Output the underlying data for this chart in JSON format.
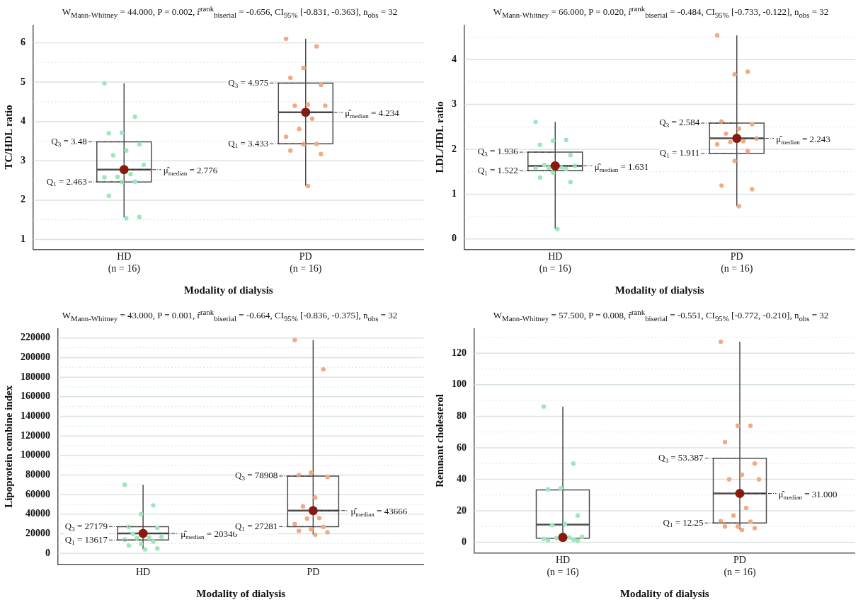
{
  "chart_data": [
    {
      "type": "box",
      "title": "W$_{Mann-Whitney}$ = 44.000, P = 0.002, r̂$^{rank}$$_{biserial}$ = -0.656, CI$_{95%}$ [-0.831, -0.363], n$_{obs}$ = 32",
      "xlabel": "Modality of dialysis",
      "ylabel": "TC/HDL ratio",
      "categories": [
        "HD\n(n = 16)",
        "PD\n(n = 16)"
      ],
      "ylim": [
        0.75,
        6.45
      ],
      "yticks": [
        1,
        {
          "value": 1.5,
          "label": null
        },
        2,
        {
          "value": 2.5,
          "label": null
        },
        3,
        {
          "value": 3.5,
          "label": null
        },
        4,
        {
          "value": 4.5,
          "label": null
        },
        5,
        {
          "value": 5.5,
          "label": null
        },
        6
      ],
      "grid": "y",
      "legend": false,
      "marker": "circle",
      "series": [
        {
          "type": "box",
          "color": "#4d4d4d",
          "boxes": [
            {
              "low": 1.56,
              "q1": 2.463,
              "median": 2.776,
              "q3": 3.48,
              "high": 4.97
            },
            {
              "low": 2.36,
              "q1": 3.433,
              "median": 4.234,
              "q3": 4.975,
              "high": 6.1
            }
          ]
        },
        {
          "type": "scatter",
          "color": "#9fe6ba",
          "x": [
            "HD\n(n = 16)",
            "HD\n(n = 16)",
            "HD\n(n = 16)",
            "HD\n(n = 16)",
            "HD\n(n = 16)",
            "HD\n(n = 16)",
            "HD\n(n = 16)",
            "HD\n(n = 16)",
            "HD\n(n = 16)",
            "HD\n(n = 16)",
            "HD\n(n = 16)",
            "HD\n(n = 16)",
            "HD\n(n = 16)",
            "HD\n(n = 16)",
            "HD\n(n = 16)",
            "HD\n(n = 16)"
          ],
          "values": [
            4.97,
            4.12,
            3.71,
            3.7,
            3.42,
            3.26,
            3.14,
            2.9,
            2.66,
            2.59,
            2.58,
            2.47,
            2.46,
            2.11,
            1.57,
            1.54
          ]
        },
        {
          "type": "scatter",
          "color": "#f0ab84",
          "x": [
            "PD\n(n = 16)",
            "PD\n(n = 16)",
            "PD\n(n = 16)",
            "PD\n(n = 16)",
            "PD\n(n = 16)",
            "PD\n(n = 16)",
            "PD\n(n = 16)",
            "PD\n(n = 16)",
            "PD\n(n = 16)",
            "PD\n(n = 16)",
            "PD\n(n = 16)",
            "PD\n(n = 16)",
            "PD\n(n = 16)",
            "PD\n(n = 16)",
            "PD\n(n = 16)",
            "PD\n(n = 16)"
          ],
          "values": [
            6.1,
            5.91,
            5.36,
            5.11,
            4.93,
            4.43,
            4.4,
            4.4,
            4.07,
            3.81,
            3.61,
            3.43,
            3.42,
            3.26,
            3.17,
            2.36
          ]
        },
        {
          "type": "scatter",
          "color": "#8b1a0e",
          "x": [
            "HD\n(n = 16)",
            "PD\n(n = 16)"
          ],
          "values": [
            2.776,
            4.234
          ]
        }
      ],
      "annotations": [
        {
          "text": "Q$_{3}$ = 3.48",
          "x": "HD\n(n = 16)",
          "y": 3.48
        },
        {
          "text": "Q$_{1}$ = 2.463",
          "x": "HD\n(n = 16)",
          "y": 2.463
        },
        {
          "text": "μ̂$_{median}$ = 2.776",
          "x": "HD\n(n = 16)",
          "y": 2.776
        },
        {
          "text": "Q$_{3}$ = 4.975",
          "x": "PD\n(n = 16)",
          "y": 4.975
        },
        {
          "text": "Q$_{1}$ = 3.433",
          "x": "PD\n(n = 16)",
          "y": 3.433
        },
        {
          "text": "μ̂$_{median}$ = 4.234",
          "x": "PD\n(n = 16)",
          "y": 4.234
        }
      ]
    },
    {
      "type": "box",
      "title": "W$_{Mann-Whitney}$ = 66.000, P = 0.020, r̂$^{rank}$$_{biserial}$ = -0.484, CI$_{95%}$ [-0.733, -0.122], n$_{obs}$ = 32",
      "xlabel": "Modality of dialysis",
      "ylabel": "LDL/HDL ratio",
      "categories": [
        "HD\n(n = 16)",
        "PD\n(n = 16)"
      ],
      "ylim": [
        -0.23,
        4.77
      ],
      "yticks": [
        0,
        {
          "value": 0.5,
          "label": null
        },
        1,
        {
          "value": 1.5,
          "label": null
        },
        2,
        {
          "value": 2.5,
          "label": null
        },
        3,
        {
          "value": 3.5,
          "label": null
        },
        4,
        {
          "value": 4.5,
          "label": null
        }
      ],
      "grid": "y",
      "legend": false,
      "marker": "circle",
      "series": [
        {
          "type": "box",
          "color": "#4d4d4d",
          "boxes": [
            {
              "low": 0.22,
              "q1": 1.522,
              "median": 1.631,
              "q3": 1.936,
              "high": 2.61
            },
            {
              "low": 0.73,
              "q1": 1.911,
              "median": 2.243,
              "q3": 2.584,
              "high": 4.54
            }
          ]
        },
        {
          "type": "scatter",
          "color": "#9fe6ba",
          "x": [
            "HD\n(n = 16)",
            "HD\n(n = 16)",
            "HD\n(n = 16)",
            "HD\n(n = 16)",
            "HD\n(n = 16)",
            "HD\n(n = 16)",
            "HD\n(n = 16)",
            "HD\n(n = 16)",
            "HD\n(n = 16)",
            "HD\n(n = 16)",
            "HD\n(n = 16)",
            "HD\n(n = 16)",
            "HD\n(n = 16)",
            "HD\n(n = 16)",
            "HD\n(n = 16)",
            "HD\n(n = 16)"
          ],
          "values": [
            2.61,
            2.21,
            2.19,
            2.1,
            1.87,
            null,
            1.65,
            1.63,
            1.6,
            1.59,
            1.57,
            1.56,
            1.48,
            1.37,
            1.27,
            0.22
          ]
        },
        {
          "type": "scatter",
          "color": "#f0ab84",
          "x": [
            "PD\n(n = 16)",
            "PD\n(n = 16)",
            "PD\n(n = 16)",
            "PD\n(n = 16)",
            "PD\n(n = 16)",
            "PD\n(n = 16)",
            "PD\n(n = 16)",
            "PD\n(n = 16)",
            "PD\n(n = 16)",
            "PD\n(n = 16)",
            "PD\n(n = 16)",
            "PD\n(n = 16)",
            "PD\n(n = 16)",
            "PD\n(n = 16)",
            "PD\n(n = 16)",
            "PD\n(n = 16)"
          ],
          "values": [
            4.54,
            3.73,
            3.67,
            2.62,
            2.56,
            2.46,
            2.35,
            2.24,
            2.18,
            2.16,
            2.11,
            1.96,
            1.74,
            1.19,
            1.11,
            0.73
          ]
        },
        {
          "type": "scatter",
          "color": "#8b1a0e",
          "x": [
            "HD\n(n = 16)",
            "PD\n(n = 16)"
          ],
          "values": [
            1.631,
            2.243
          ]
        }
      ],
      "annotations": [
        {
          "text": "Q$_{3}$ = 1.936",
          "x": "HD\n(n = 16)",
          "y": 1.936
        },
        {
          "text": "Q$_{1}$ = 1.522",
          "x": "HD\n(n = 16)",
          "y": 1.522
        },
        {
          "text": "μ̂$_{median}$ = 1.631",
          "x": "HD\n(n = 16)",
          "y": 1.631
        },
        {
          "text": "Q$_{3}$ = 2.584",
          "x": "PD\n(n = 16)",
          "y": 2.584
        },
        {
          "text": "Q$_{1}$ = 1.911",
          "x": "PD\n(n = 16)",
          "y": 1.911
        },
        {
          "text": "μ̂$_{median}$ = 2.243",
          "x": "PD\n(n = 16)",
          "y": 2.243
        }
      ]
    },
    {
      "type": "box",
      "title": "W$_{Mann-Whitney}$ = 43.000, P = 0.001, r̂$^{rank}$$_{biserial}$ = -0.664, CI$_{95%}$ [-0.836, -0.375], n$_{obs}$ = 32",
      "xlabel": "Modality of dialysis",
      "ylabel": "Lipoprotein combine index",
      "categories": [
        "HD",
        "PD"
      ],
      "ylim": [
        -11600,
        229700
      ],
      "yticks": [
        0,
        {
          "value": 10000,
          "label": null
        },
        20000,
        {
          "value": 30000,
          "label": null
        },
        40000,
        {
          "value": 50000,
          "label": null
        },
        60000,
        {
          "value": 70000,
          "label": null
        },
        80000,
        {
          "value": 90000,
          "label": null
        },
        100000,
        {
          "value": 110000,
          "label": null
        },
        120000,
        {
          "value": 130000,
          "label": null
        },
        140000,
        {
          "value": 150000,
          "label": null
        },
        160000,
        {
          "value": 170000,
          "label": null
        },
        180000,
        {
          "value": 190000,
          "label": null
        },
        200000,
        {
          "value": 210000,
          "label": null
        },
        220000
      ],
      "grid": "y",
      "legend": false,
      "marker": "circle",
      "series": [
        {
          "type": "box",
          "color": "#4d4d4d",
          "boxes": [
            {
              "low": 4000,
              "q1": 13617,
              "median": 20346,
              "q3": 27179,
              "high": 70000
            },
            {
              "low": 19000,
              "q1": 27281,
              "median": 43666,
              "q3": 78908,
              "high": 218000
            }
          ]
        },
        {
          "type": "scatter",
          "color": "#9fe6ba",
          "x": [
            "HD",
            "HD",
            "HD",
            "HD",
            "HD",
            "HD",
            "HD",
            "HD",
            "HD",
            "HD",
            "HD",
            "HD",
            "HD",
            "HD",
            "HD",
            "HD"
          ],
          "values": [
            70000,
            49000,
            40000,
            27000,
            26000,
            null,
            20000,
            17000,
            16000,
            15500,
            14000,
            12000,
            9500,
            8000,
            5000,
            4000
          ]
        },
        {
          "type": "scatter",
          "color": "#f0ab84",
          "x": [
            "PD",
            "PD",
            "PD",
            "PD",
            "PD",
            "PD",
            "PD",
            "PD",
            "PD",
            "PD",
            "PD",
            "PD",
            "PD",
            "PD",
            "PD",
            "PD"
          ],
          "values": [
            218000,
            188000,
            82500,
            80000,
            78000,
            57000,
            48000,
            null,
            36000,
            35500,
            30000,
            27000,
            24500,
            23000,
            21500,
            19000
          ]
        },
        {
          "type": "scatter",
          "color": "#8b1a0e",
          "x": [
            "HD",
            "PD"
          ],
          "values": [
            20346,
            43666
          ]
        }
      ],
      "annotations": [
        {
          "text": "Q$_{3}$ = 27179",
          "x": "HD",
          "y": 27179
        },
        {
          "text": "Q$_{1}$ = 13617",
          "x": "HD",
          "y": 13617
        },
        {
          "text": "μ̂$_{median}$ = 20346",
          "x": "HD",
          "y": 20346
        },
        {
          "text": "Q$_{3}$ = 78908",
          "x": "PD",
          "y": 78908
        },
        {
          "text": "Q$_{1}$ = 27281",
          "x": "PD",
          "y": 27281
        },
        {
          "text": "μ̂$_{median}$ = 43666",
          "x": "PD",
          "y": 43666
        }
      ]
    },
    {
      "type": "box",
      "title": "W$_{Mann-Whitney}$ = 57.500, P = 0.008, r̂$^{rank}$$_{biserial}$ = -0.551, CI$_{95%}$ [-0.772, -0.210], n$_{obs}$ = 32",
      "xlabel": "Modality of dialysis",
      "ylabel": "Remnant cholesterol",
      "categories": [
        "HD\n(n = 16)",
        "PD\n(n = 16)"
      ],
      "ylim": [
        -6.7,
        135.7
      ],
      "yticks": [
        0,
        {
          "value": 10,
          "label": null
        },
        20,
        {
          "value": 30,
          "label": null
        },
        40,
        {
          "value": 50,
          "label": null
        },
        60,
        {
          "value": 70,
          "label": null
        },
        80,
        {
          "value": 90,
          "label": null
        },
        100,
        {
          "value": 110,
          "label": null
        },
        120,
        {
          "value": 130,
          "label": null
        }
      ],
      "grid": "y",
      "legend": false,
      "marker": "circle",
      "series": [
        {
          "type": "box",
          "color": "#4d4d4d",
          "boxes": [
            {
              "low": 2.6,
              "q1": 2.6,
              "median": 11.2,
              "q3": 33.2,
              "high": 86.1
            },
            {
              "low": 8,
              "q1": 12.25,
              "median": 31,
              "q3": 53.387,
              "high": 127.3
            }
          ]
        },
        {
          "type": "scatter",
          "color": "#9fe6ba",
          "x": [
            "HD\n(n = 16)",
            "HD\n(n = 16)",
            "HD\n(n = 16)",
            "HD\n(n = 16)",
            "HD\n(n = 16)",
            "HD\n(n = 16)",
            "HD\n(n = 16)",
            "HD\n(n = 16)",
            "HD\n(n = 16)",
            "HD\n(n = 16)",
            "HD\n(n = 16)",
            "HD\n(n = 16)",
            "HD\n(n = 16)",
            "HD\n(n = 16)",
            "HD\n(n = 16)",
            "HD\n(n = 16)"
          ],
          "values": [
            86.1,
            50,
            34.3,
            33.6,
            17,
            11.6,
            10.9,
            3.5,
            3.1,
            2.6,
            2.2,
            1.7,
            null,
            1.2,
            0.9,
            null
          ]
        },
        {
          "type": "scatter",
          "color": "#f0ab84",
          "x": [
            "PD\n(n = 16)",
            "PD\n(n = 16)",
            "PD\n(n = 16)",
            "PD\n(n = 16)",
            "PD\n(n = 16)",
            "PD\n(n = 16)",
            "PD\n(n = 16)",
            "PD\n(n = 16)",
            "PD\n(n = 16)",
            "PD\n(n = 16)",
            "PD\n(n = 16)",
            "PD\n(n = 16)",
            "PD\n(n = 16)",
            "PD\n(n = 16)",
            "PD\n(n = 16)",
            "PD\n(n = 16)"
          ],
          "values": [
            127.3,
            74,
            74,
            63.6,
            50,
            42.9,
            40,
            40,
            21.8,
            17,
            13.5,
            13,
            10,
            10,
            9,
            7.8
          ]
        },
        {
          "type": "scatter",
          "color": "#8b1a0e",
          "x": [
            "HD\n(n = 16)",
            "PD\n(n = 16)"
          ],
          "values": [
            3.1,
            31
          ]
        }
      ],
      "annotations": [
        {
          "text": "Q$_{3}$ = 53.387",
          "x": "PD\n(n = 16)",
          "y": 53.387
        },
        {
          "text": "Q$_{1}$ = 12.25",
          "x": "PD\n(n = 16)",
          "y": 12.25
        },
        {
          "text": "μ̂$_{median}$ = 31.000",
          "x": "PD\n(n = 16)",
          "y": 31
        }
      ]
    }
  ]
}
